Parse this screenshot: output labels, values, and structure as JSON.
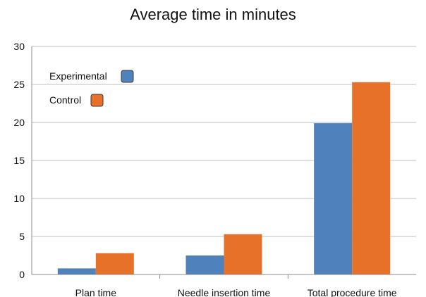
{
  "chart_data": {
    "type": "bar",
    "title": "Average time in minutes",
    "xlabel": "",
    "ylabel": "",
    "categories": [
      "Plan time",
      "Needle insertion time",
      "Total procedure time"
    ],
    "series": [
      {
        "name": "Experimental",
        "color": "#4f81bd",
        "values": [
          0.8,
          2.5,
          19.9
        ]
      },
      {
        "name": "Control",
        "color": "#e8712a",
        "values": [
          2.8,
          5.3,
          25.3
        ]
      }
    ],
    "ylim": [
      0,
      30
    ],
    "yticks": [
      0,
      5,
      10,
      15,
      20,
      25,
      30
    ],
    "grid": true,
    "legend_position": "top-left"
  }
}
